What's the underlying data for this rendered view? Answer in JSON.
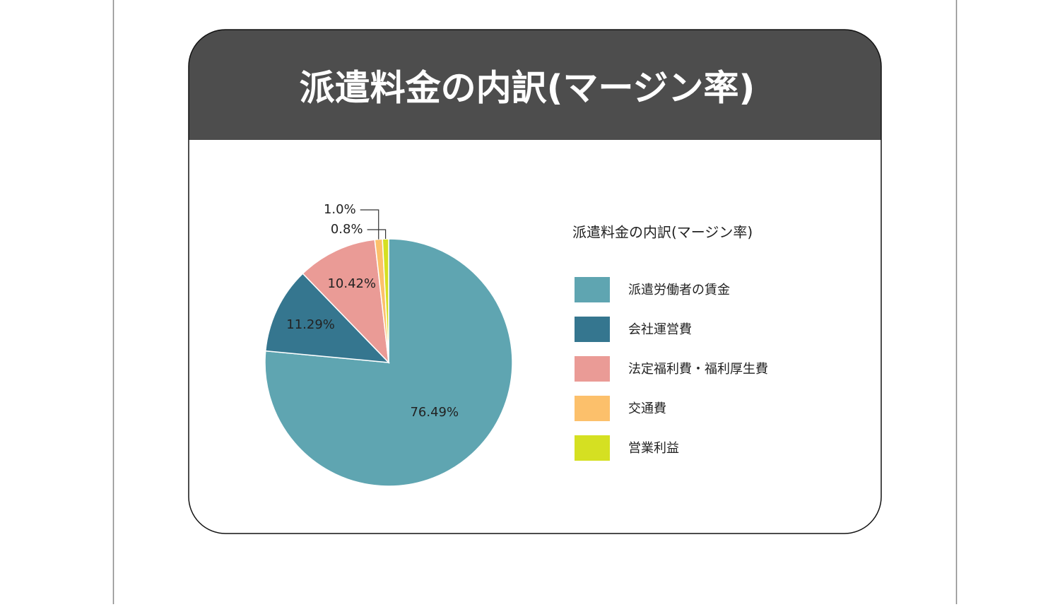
{
  "header": {
    "title": "派遣料金の内訳(マージン率)"
  },
  "chart_data": {
    "type": "pie",
    "title": "派遣料金の内訳(マージン率)",
    "categories": [
      "派遣労働者の賃金",
      "会社運営費",
      "法定福利費・福利厚生費",
      "交通費",
      "営業利益"
    ],
    "values": [
      76.49,
      11.29,
      10.42,
      1.0,
      0.8
    ],
    "value_labels": [
      "76.49%",
      "11.29%",
      "10.42%",
      "1.0%",
      "0.8%"
    ],
    "colors": [
      "#5fa5b1",
      "#35768f",
      "#ea9b96",
      "#fcc06b",
      "#d5e022"
    ],
    "legend": "right"
  }
}
